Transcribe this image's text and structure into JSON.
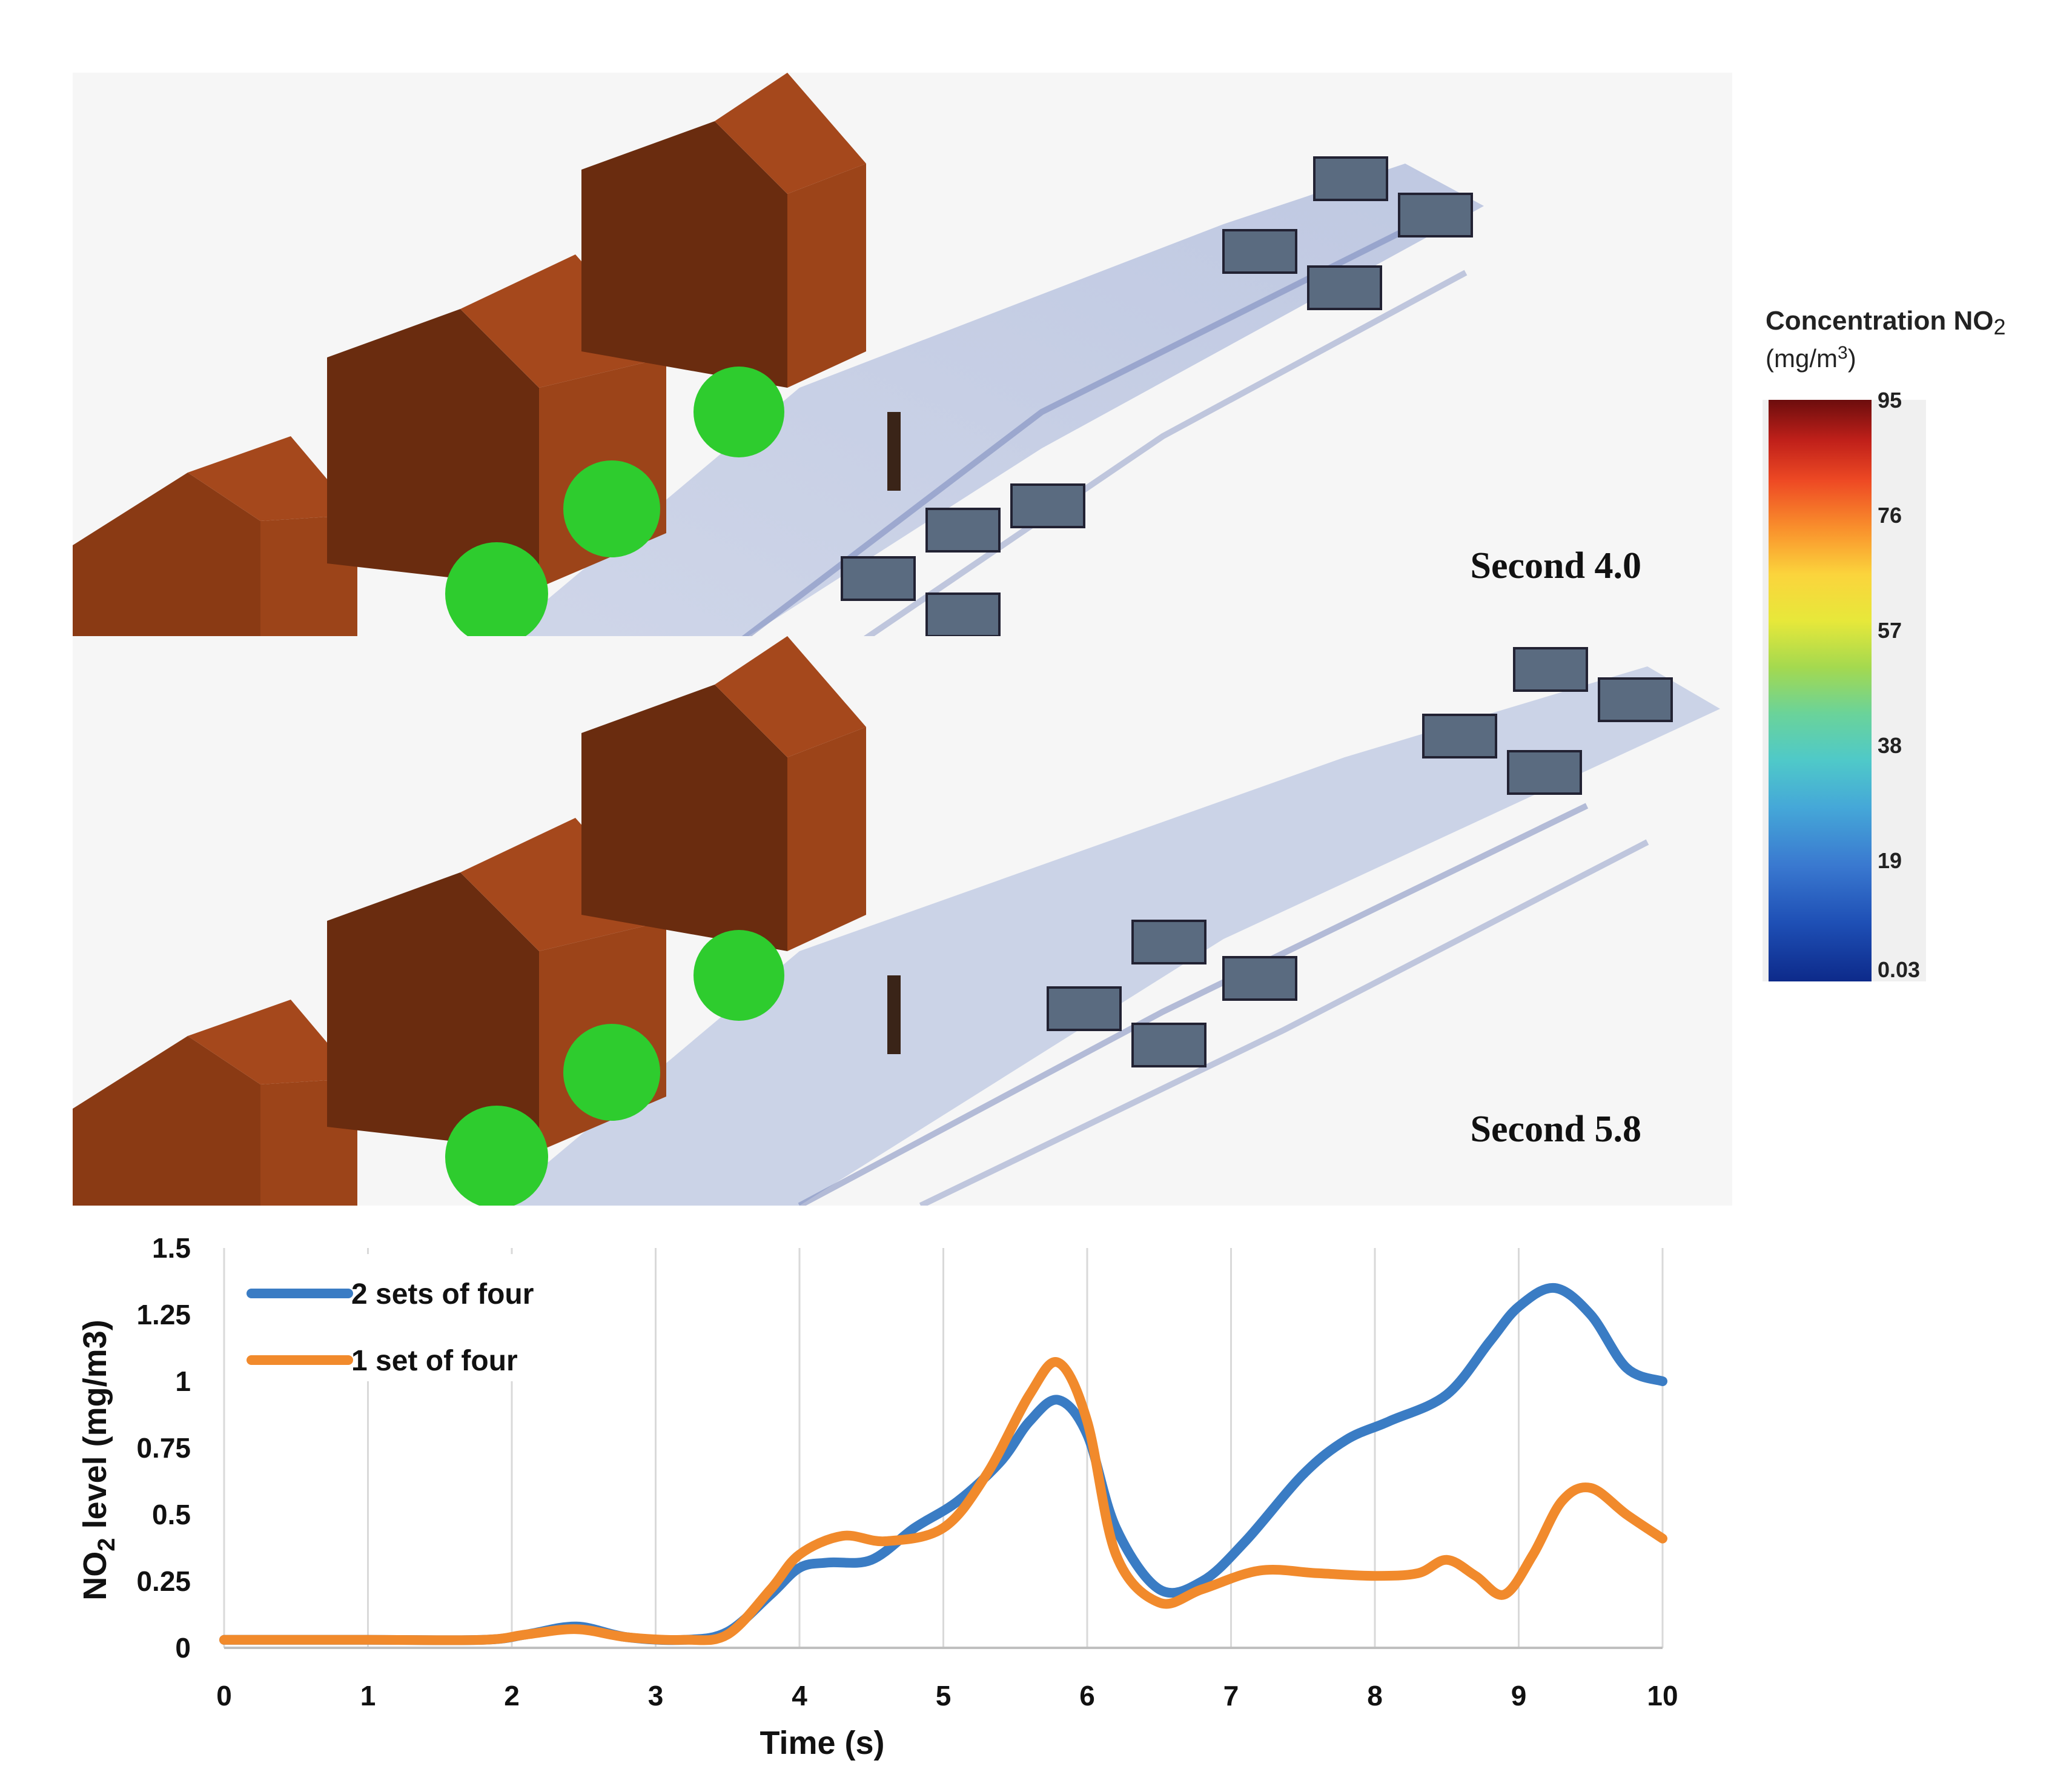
{
  "panels": [
    {
      "label": "Second 4.0"
    },
    {
      "label": "Second 5.8"
    }
  ],
  "legend": {
    "title_main": "Concentration NO",
    "title_sub": "2",
    "unit_main": "(mg/m",
    "unit_sup": "3",
    "unit_end": ")",
    "ticks": [
      "95",
      "76",
      "57",
      "38",
      "19",
      "0.03"
    ]
  },
  "colors": {
    "house": "#9c4419",
    "house_dark": "#6a2c0f",
    "tree": "#2ecc2e",
    "plume": "#a8b4d6",
    "vehicle": "#5a6b80",
    "series_blue": "#3a7cc4",
    "series_orange": "#f18a2c"
  },
  "chart_data": {
    "type": "line",
    "xlabel": "Time (s)",
    "ylabel_parts": [
      "NO",
      "2",
      " level (mg/m3)"
    ],
    "xlim": [
      0,
      10
    ],
    "ylim": [
      0,
      1.5
    ],
    "xticks": [
      0,
      1,
      2,
      3,
      4,
      5,
      6,
      7,
      8,
      9,
      10
    ],
    "yticks": [
      0,
      0.25,
      0.5,
      0.75,
      1,
      1.25,
      1.5
    ],
    "ytick_labels": [
      "0",
      "0.25",
      "0.5",
      "0.75",
      "1",
      "1.25",
      "1.5"
    ],
    "grid": "vertical",
    "legend_position": "top-left",
    "series": [
      {
        "name": "2 sets of four",
        "color": "#3a7cc4",
        "x": [
          0,
          1,
          1.8,
          2.1,
          2.45,
          2.8,
          3.2,
          3.5,
          3.8,
          4.0,
          4.2,
          4.5,
          4.8,
          5.1,
          5.4,
          5.6,
          5.8,
          6.0,
          6.2,
          6.5,
          6.8,
          7.1,
          7.5,
          7.8,
          8.1,
          8.5,
          8.8,
          9.0,
          9.25,
          9.5,
          9.75,
          10
        ],
        "y": [
          0.03,
          0.03,
          0.03,
          0.05,
          0.08,
          0.04,
          0.03,
          0.06,
          0.2,
          0.3,
          0.32,
          0.33,
          0.45,
          0.55,
          0.7,
          0.85,
          0.93,
          0.8,
          0.45,
          0.22,
          0.25,
          0.4,
          0.65,
          0.78,
          0.85,
          0.95,
          1.15,
          1.28,
          1.35,
          1.25,
          1.05,
          1.0
        ]
      },
      {
        "name": "1 set of four",
        "color": "#f18a2c",
        "x": [
          0,
          1,
          1.8,
          2.1,
          2.45,
          2.8,
          3.2,
          3.5,
          3.8,
          4.0,
          4.3,
          4.6,
          5.0,
          5.3,
          5.6,
          5.8,
          6.0,
          6.2,
          6.5,
          6.8,
          7.2,
          7.6,
          8.0,
          8.3,
          8.5,
          8.7,
          8.9,
          9.1,
          9.3,
          9.5,
          9.75,
          10
        ],
        "y": [
          0.03,
          0.03,
          0.03,
          0.05,
          0.07,
          0.04,
          0.03,
          0.05,
          0.22,
          0.35,
          0.42,
          0.4,
          0.45,
          0.65,
          0.95,
          1.07,
          0.85,
          0.35,
          0.17,
          0.22,
          0.29,
          0.28,
          0.27,
          0.28,
          0.33,
          0.27,
          0.2,
          0.35,
          0.55,
          0.6,
          0.5,
          0.41
        ]
      }
    ]
  }
}
